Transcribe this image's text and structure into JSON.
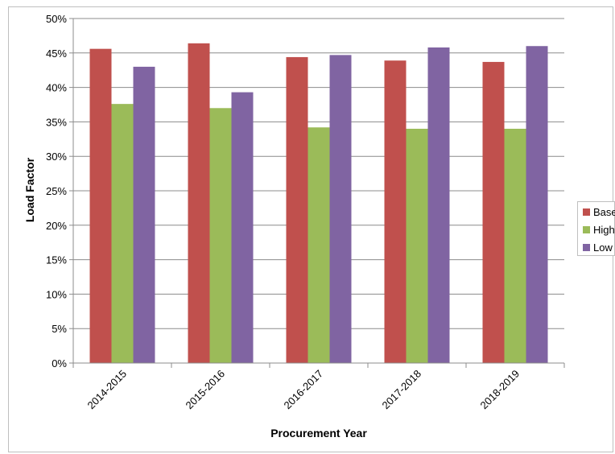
{
  "chart_data": {
    "type": "bar",
    "categories": [
      "2014-2015",
      "2015-2016",
      "2016-2017",
      "2017-2018",
      "2018-2019"
    ],
    "series": [
      {
        "name": "Base",
        "color": "#c0504d",
        "values": [
          45.6,
          46.4,
          44.4,
          43.9,
          43.7
        ]
      },
      {
        "name": "High",
        "color": "#9bbb59",
        "values": [
          37.6,
          37.0,
          34.2,
          34.0,
          34.0
        ]
      },
      {
        "name": "Low",
        "color": "#8064a2",
        "values": [
          43.0,
          39.3,
          44.7,
          45.8,
          46.0
        ]
      }
    ],
    "xlabel": "Procurement Year",
    "ylabel": "Load Factor",
    "ylim": [
      0,
      50
    ],
    "yticks": [
      0,
      5,
      10,
      15,
      20,
      25,
      30,
      35,
      40,
      45,
      50
    ],
    "ytick_labels": [
      "0%",
      "5%",
      "10%",
      "15%",
      "20%",
      "25%",
      "30%",
      "35%",
      "40%",
      "45%",
      "50%"
    ],
    "grid": true,
    "legend": "right"
  }
}
